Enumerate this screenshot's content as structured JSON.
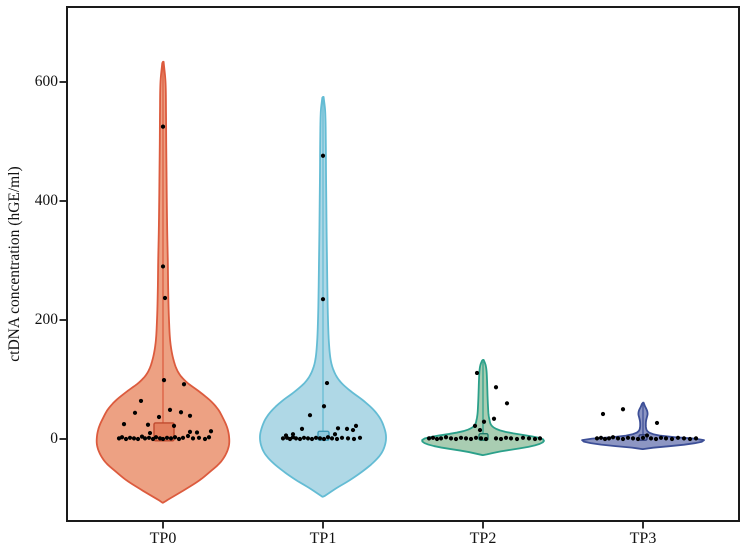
{
  "chart_data": {
    "type": "violin",
    "title": "",
    "xlabel": "",
    "ylabel": "ctDNA concentration (hGE/ml)",
    "categories": [
      "TP0",
      "TP1",
      "TP2",
      "TP3"
    ],
    "y_tick_labels": [
      "0",
      "200",
      "400",
      "600"
    ],
    "y_tick_values": [
      0,
      200,
      400,
      600
    ],
    "ylim": [
      -138,
      726
    ],
    "grid": false,
    "legend": "none",
    "axis_color": "#1a1a1a",
    "point_color": "#000000",
    "series": [
      {
        "name": "TP0",
        "fill": "#EDA183",
        "stroke": "#DC5B3E",
        "box_fill": "#E4805F",
        "box_stroke": "#C04A2F",
        "line_top": 630,
        "profile": [
          [
            634,
            0.6
          ],
          [
            600,
            2.5
          ],
          [
            550,
            3
          ],
          [
            500,
            3.2
          ],
          [
            450,
            3.5
          ],
          [
            400,
            3.8
          ],
          [
            350,
            4.2
          ],
          [
            300,
            4.8
          ],
          [
            250,
            5.2
          ],
          [
            200,
            6
          ],
          [
            160,
            7.5
          ],
          [
            130,
            11
          ],
          [
            110,
            16
          ],
          [
            95,
            24
          ],
          [
            80,
            36
          ],
          [
            65,
            47
          ],
          [
            50,
            55
          ],
          [
            35,
            60
          ],
          [
            20,
            64
          ],
          [
            5,
            66
          ],
          [
            -10,
            66
          ],
          [
            -25,
            63
          ],
          [
            -40,
            57
          ],
          [
            -55,
            47
          ],
          [
            -70,
            36
          ],
          [
            -85,
            22
          ],
          [
            -95,
            12
          ],
          [
            -103,
            4
          ],
          [
            -107,
            0.6
          ]
        ],
        "box": {
          "dx": -9,
          "width": 20,
          "v_top": 27,
          "v_bottom": -3
        },
        "points": [
          [
            0,
            525
          ],
          [
            0,
            290
          ],
          [
            2,
            237
          ],
          [
            1,
            99
          ],
          [
            21,
            92
          ],
          [
            -22,
            64
          ],
          [
            7,
            49
          ],
          [
            18,
            45
          ],
          [
            -28,
            44
          ],
          [
            27,
            39
          ],
          [
            -4,
            37
          ],
          [
            -39,
            25
          ],
          [
            -15,
            24
          ],
          [
            11,
            22
          ],
          [
            48,
            13
          ],
          [
            27,
            12
          ],
          [
            34,
            11
          ],
          [
            -13,
            10
          ],
          [
            -44,
            1
          ],
          [
            -41,
            3
          ],
          [
            -37,
            0
          ],
          [
            -33,
            2
          ],
          [
            -29,
            1
          ],
          [
            -25,
            0
          ],
          [
            -21,
            4
          ],
          [
            -18,
            1
          ],
          [
            -14,
            2
          ],
          [
            -10,
            0
          ],
          [
            -7,
            3
          ],
          [
            -3,
            1
          ],
          [
            0,
            0
          ],
          [
            4,
            2
          ],
          [
            8,
            1
          ],
          [
            12,
            3
          ],
          [
            16,
            0
          ],
          [
            20,
            2
          ],
          [
            25,
            5
          ],
          [
            30,
            1
          ],
          [
            36,
            2
          ],
          [
            42,
            0
          ],
          [
            46,
            3
          ]
        ]
      },
      {
        "name": "TP1",
        "fill": "#AFD8E6",
        "stroke": "#64BCD4",
        "box_fill": "#8EC9DD",
        "box_stroke": "#3F9BB8",
        "line_top": 572,
        "profile": [
          [
            575,
            0.6
          ],
          [
            550,
            2.2
          ],
          [
            500,
            2.8
          ],
          [
            450,
            3
          ],
          [
            400,
            3.3
          ],
          [
            350,
            3.6
          ],
          [
            300,
            4
          ],
          [
            250,
            4.4
          ],
          [
            200,
            5
          ],
          [
            160,
            6
          ],
          [
            130,
            8
          ],
          [
            110,
            12
          ],
          [
            95,
            18
          ],
          [
            80,
            28
          ],
          [
            65,
            40
          ],
          [
            50,
            50
          ],
          [
            35,
            57
          ],
          [
            20,
            61
          ],
          [
            5,
            63
          ],
          [
            -10,
            62
          ],
          [
            -25,
            58
          ],
          [
            -40,
            50
          ],
          [
            -55,
            39
          ],
          [
            -70,
            26
          ],
          [
            -82,
            14
          ],
          [
            -92,
            5
          ],
          [
            -97,
            0.6
          ]
        ],
        "box": {
          "dx": -5,
          "width": 11,
          "v_top": 13,
          "v_bottom": -2
        },
        "points": [
          [
            0,
            476
          ],
          [
            0,
            235
          ],
          [
            4,
            94
          ],
          [
            1,
            55
          ],
          [
            -13,
            40
          ],
          [
            33,
            22
          ],
          [
            15,
            18
          ],
          [
            -21,
            17
          ],
          [
            24,
            17
          ],
          [
            30,
            15
          ],
          [
            -30,
            8
          ],
          [
            12,
            8
          ],
          [
            -37,
            6
          ],
          [
            -40,
            1
          ],
          [
            -36,
            2
          ],
          [
            -33,
            0
          ],
          [
            -30,
            3
          ],
          [
            -27,
            1
          ],
          [
            -23,
            0
          ],
          [
            -19,
            2
          ],
          [
            -15,
            1
          ],
          [
            -11,
            0
          ],
          [
            -7,
            2
          ],
          [
            -3,
            1
          ],
          [
            1,
            0
          ],
          [
            5,
            3
          ],
          [
            9,
            1
          ],
          [
            14,
            0
          ],
          [
            19,
            2
          ],
          [
            25,
            1
          ],
          [
            31,
            0
          ],
          [
            37,
            2
          ]
        ]
      },
      {
        "name": "TP2",
        "fill": "#A9CDB2",
        "stroke": "#2BA08A",
        "box_fill": "#8FBF9F",
        "box_stroke": "#1F7A6A",
        "line_top": 130,
        "profile": [
          [
            133,
            0.6
          ],
          [
            125,
            2.5
          ],
          [
            115,
            3.5
          ],
          [
            100,
            4
          ],
          [
            85,
            4.3
          ],
          [
            70,
            4.6
          ],
          [
            55,
            5
          ],
          [
            42,
            5.5
          ],
          [
            32,
            6.5
          ],
          [
            24,
            8
          ],
          [
            18,
            12
          ],
          [
            13,
            20
          ],
          [
            9,
            32
          ],
          [
            5,
            47
          ],
          [
            1,
            58
          ],
          [
            -3,
            61
          ],
          [
            -8,
            57
          ],
          [
            -13,
            46
          ],
          [
            -17,
            32
          ],
          [
            -21,
            17
          ],
          [
            -25,
            6
          ],
          [
            -27,
            0.6
          ]
        ],
        "box": {
          "dx": -4,
          "width": 9,
          "v_top": 9,
          "v_bottom": -2
        },
        "points": [
          [
            -6,
            111
          ],
          [
            13,
            87
          ],
          [
            24,
            60
          ],
          [
            11,
            34
          ],
          [
            1,
            29
          ],
          [
            -8,
            22
          ],
          [
            -3,
            15
          ],
          [
            -54,
            1
          ],
          [
            -50,
            2
          ],
          [
            -46,
            0
          ],
          [
            -42,
            1
          ],
          [
            -37,
            3
          ],
          [
            -32,
            1
          ],
          [
            -27,
            0
          ],
          [
            -22,
            2
          ],
          [
            -17,
            1
          ],
          [
            -12,
            0
          ],
          [
            -7,
            2
          ],
          [
            -2,
            1
          ],
          [
            3,
            0
          ],
          [
            13,
            1
          ],
          [
            18,
            0
          ],
          [
            23,
            2
          ],
          [
            28,
            1
          ],
          [
            34,
            0
          ],
          [
            40,
            2
          ],
          [
            46,
            1
          ],
          [
            52,
            0
          ],
          [
            57,
            1
          ]
        ]
      },
      {
        "name": "TP3",
        "fill": "#8D96C3",
        "stroke": "#3D4F97",
        "box_fill": "#7682B5",
        "box_stroke": "#2E3C7A",
        "line_top": 58,
        "profile": [
          [
            61,
            0.6
          ],
          [
            55,
            2
          ],
          [
            48,
            4
          ],
          [
            42,
            4.6
          ],
          [
            36,
            3.8
          ],
          [
            30,
            3
          ],
          [
            24,
            2.8
          ],
          [
            19,
            3
          ],
          [
            14,
            4
          ],
          [
            10,
            7
          ],
          [
            7,
            13
          ],
          [
            4,
            24
          ],
          [
            2,
            40
          ],
          [
            0,
            55
          ],
          [
            -2,
            61
          ],
          [
            -5,
            58
          ],
          [
            -8,
            48
          ],
          [
            -11,
            34
          ],
          [
            -13,
            20
          ],
          [
            -15,
            8
          ],
          [
            -16,
            2
          ],
          [
            -17,
            0.6
          ]
        ],
        "box": {
          "dx": -4,
          "width": 8,
          "v_top": 7,
          "v_bottom": -2
        },
        "points": [
          [
            -40,
            42
          ],
          [
            -20,
            50
          ],
          [
            14,
            27
          ],
          [
            4,
            6
          ],
          [
            -46,
            1
          ],
          [
            -42,
            2
          ],
          [
            -38,
            0
          ],
          [
            -34,
            1
          ],
          [
            -30,
            3
          ],
          [
            -25,
            1
          ],
          [
            -20,
            0
          ],
          [
            -15,
            2
          ],
          [
            -10,
            1
          ],
          [
            -5,
            0
          ],
          [
            0,
            2
          ],
          [
            8,
            1
          ],
          [
            13,
            0
          ],
          [
            18,
            2
          ],
          [
            23,
            1
          ],
          [
            29,
            0
          ],
          [
            35,
            2
          ],
          [
            41,
            1
          ],
          [
            47,
            0
          ],
          [
            53,
            1
          ]
        ]
      }
    ]
  }
}
